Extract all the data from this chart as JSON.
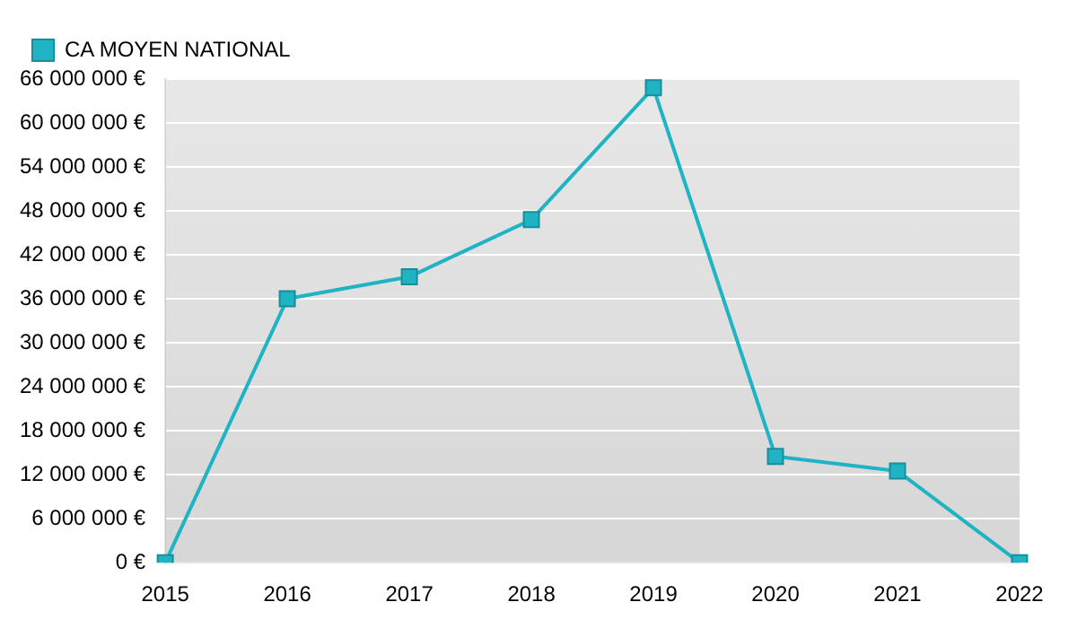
{
  "chart_data": {
    "type": "line",
    "categories": [
      "2015",
      "2016",
      "2017",
      "2018",
      "2019",
      "2020",
      "2021",
      "2022"
    ],
    "series": [
      {
        "name": "CA MOYEN NATIONAL",
        "color": "#1fb3c4",
        "values": [
          0,
          36000000,
          39000000,
          46800000,
          64800000,
          14500000,
          12500000,
          0
        ]
      }
    ],
    "ylim": [
      0,
      66000000
    ],
    "yticks": [
      {
        "value": 0,
        "label": "0 €"
      },
      {
        "value": 6000000,
        "label": "6 000 000 €"
      },
      {
        "value": 12000000,
        "label": "12 000 000 €"
      },
      {
        "value": 18000000,
        "label": "18 000 000 €"
      },
      {
        "value": 24000000,
        "label": "24 000 000 €"
      },
      {
        "value": 30000000,
        "label": "30 000 000 €"
      },
      {
        "value": 36000000,
        "label": "36 000 000 €"
      },
      {
        "value": 42000000,
        "label": "42 000 000 €"
      },
      {
        "value": 48000000,
        "label": "48 000 000 €"
      },
      {
        "value": 54000000,
        "label": "54 000 000 €"
      },
      {
        "value": 60000000,
        "label": "60 000 000 €"
      },
      {
        "value": 66000000,
        "label": "66 000 000 €"
      }
    ],
    "grid": "y",
    "legend": "top left",
    "marker": "square",
    "line_style": "solid"
  }
}
